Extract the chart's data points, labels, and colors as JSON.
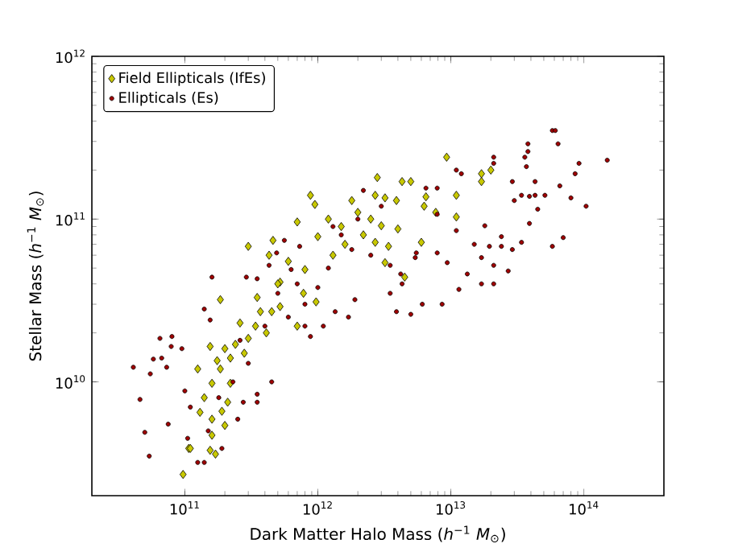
{
  "chart_data": {
    "type": "scatter",
    "xlabel": "Dark Matter Halo Mass (*h*$^{−1}$ *M*$_{⊙}$)",
    "ylabel": "Stellar Mass (*h*$^{−1}$ *M*$_{⊙}$)",
    "log": "xy",
    "xlim": [
      20000000000.0,
      400000000000000.0
    ],
    "ylim": [
      2000000000.0,
      1000000000000.0
    ],
    "xticks": [
      {
        "value": 100000000000.0,
        "label": "10$^{11}$"
      },
      {
        "value": 1000000000000.0,
        "label": "10$^{12}$"
      },
      {
        "value": 10000000000000.0,
        "label": "10$^{13}$"
      },
      {
        "value": 100000000000000.0,
        "label": "10$^{14}$"
      }
    ],
    "yticks": [
      {
        "value": 10000000000.0,
        "label": "10$^{10}$"
      },
      {
        "value": 100000000000.0,
        "label": "10$^{11}$"
      },
      {
        "value": 1000000000000.0,
        "label": "10$^{12}$"
      }
    ],
    "grid": false,
    "legend": "top left",
    "series": [
      {
        "name": "Field Ellipticals (IfEs)",
        "color": "#c8c800",
        "marker": "diamond",
        "x": [
          97000000000.0,
          107000000000.0,
          110000000000.0,
          155000000000.0,
          170000000000.0,
          160000000000.0,
          160000000000.0,
          200000000000.0,
          190000000000.0,
          210000000000.0,
          160000000000.0,
          125000000000.0,
          185000000000.0,
          220000000000.0,
          155000000000.0,
          220000000000.0,
          240000000000.0,
          300000000000.0,
          340000000000.0,
          410000000000.0,
          280000000000.0,
          370000000000.0,
          450000000000.0,
          520000000000.0,
          185000000000.0,
          700000000000.0,
          970000000000.0,
          780000000000.0,
          300000000000.0,
          430000000000.0,
          460000000000.0,
          700000000000.0,
          880000000000.0,
          950000000000.0,
          520000000000.0,
          800000000000.0,
          1000000000000.0,
          9300000000000.0,
          20000000000000.0,
          17000000000000.0,
          17000000000000.0,
          2800000000000.0,
          4300000000000.0,
          5000000000000.0,
          2700000000000.0,
          3200000000000.0,
          3900000000000.0,
          6500000000000.0,
          11000000000000.0,
          6300000000000.0,
          7700000000000.0,
          11000000000000.0,
          3000000000000.0,
          4000000000000.0,
          2700000000000.0,
          3400000000000.0,
          6000000000000.0,
          4500000000000.0,
          3200000000000.0,
          1500000000000.0,
          2000000000000.0,
          1300000000000.0,
          2200000000000.0,
          1800000000000.0,
          1200000000000.0,
          2500000000000.0,
          1600000000000.0,
          600000000000.0,
          500000000000.0,
          350000000000.0,
          260000000000.0,
          200000000000.0,
          140000000000.0,
          130000000000.0,
          175000000000.0
        ],
        "values": [
          2700000000.0,
          3900000000.0,
          3900000000.0,
          3800000000.0,
          3600000000.0,
          4700000000.0,
          5900000000.0,
          5400000000.0,
          6600000000.0,
          7500000000.0,
          9800000000.0,
          12000000000.0,
          12000000000.0,
          9800000000.0,
          16500000000.0,
          14000000000.0,
          17000000000.0,
          18500000000.0,
          22000000000.0,
          20000000000.0,
          15000000000.0,
          27000000000.0,
          27000000000.0,
          29000000000.0,
          32000000000.0,
          22000000000.0,
          31000000000.0,
          35000000000.0,
          68000000000.0,
          60000000000.0,
          74000000000.0,
          96000000000.0,
          140000000000.0,
          123000000000.0,
          41000000000.0,
          49000000000.0,
          78000000000.0,
          240000000000.0,
          200000000000.0,
          190000000000.0,
          170000000000.0,
          180000000000.0,
          170000000000.0,
          170000000000.0,
          140000000000.0,
          135000000000.0,
          130000000000.0,
          137000000000.0,
          140000000000.0,
          120000000000.0,
          110000000000.0,
          103000000000.0,
          91000000000.0,
          87000000000.0,
          72000000000.0,
          68000000000.0,
          72000000000.0,
          44000000000.0,
          54000000000.0,
          90000000000.0,
          110000000000.0,
          60000000000.0,
          80000000000.0,
          130000000000.0,
          100000000000.0,
          100000000000.0,
          70000000000.0,
          55000000000.0,
          40000000000.0,
          33000000000.0,
          23000000000.0,
          16000000000.0,
          8000000000.0,
          6500000000.0,
          13500000000.0
        ]
      },
      {
        "name": "Ellipticals (Es)",
        "color": "#a00000",
        "marker": "circle",
        "x": [
          41000000000.0,
          46000000000.0,
          50000000000.0,
          54000000000.0,
          55000000000.0,
          58000000000.0,
          65000000000.0,
          67000000000.0,
          73000000000.0,
          80000000000.0,
          75000000000.0,
          100000000000.0,
          110000000000.0,
          105000000000.0,
          125000000000.0,
          140000000000.0,
          190000000000.0,
          79000000000.0,
          95000000000.0,
          140000000000.0,
          155000000000.0,
          350000000000.0,
          350000000000.0,
          275000000000.0,
          250000000000.0,
          450000000000.0,
          800000000000.0,
          880000000000.0,
          1350000000000.0,
          1700000000000.0,
          1100000000000.0,
          1900000000000.0,
          160000000000.0,
          290000000000.0,
          350000000000.0,
          560000000000.0,
          490000000000.0,
          430000000000.0,
          630000000000.0,
          730000000000.0,
          58000000000000.0,
          61000000000000.0,
          64000000000000.0,
          38000000000000.0,
          38000000000000.0,
          36000000000000.0,
          37000000000000.0,
          21000000000000.0,
          21000000000000.0,
          92000000000000.0,
          150000000000000.0,
          86000000000000.0,
          66000000000000.0,
          80000000000000.0,
          104000000000000.0,
          70000000000000.0,
          58000000000000.0,
          51000000000000.0,
          43000000000000.0,
          43000000000000.0,
          39000000000000.0,
          45000000000000.0,
          39000000000000.0,
          34000000000000.0,
          29000000000000.0,
          24000000000000.0,
          27000000000000.0,
          21000000000000.0,
          17000000000000.0,
          13300000000000.0,
          11500000000000.0,
          8600000000000.0,
          6100000000000.0,
          5000000000000.0,
          3900000000000.0,
          24000000000000.0,
          19500000000000.0,
          17000000000000.0,
          21000000000000.0,
          12000000000000.0,
          11000000000000.0,
          30000000000000.0,
          34000000000000.0,
          29000000000000.0,
          7900000000000.0,
          6500000000000.0,
          7900000000000.0,
          11000000000000.0,
          18000000000000.0,
          15000000000000.0,
          7900000000000.0,
          5500000000000.0,
          4200000000000.0,
          3500000000000.0,
          3500000000000.0,
          5400000000000.0,
          9400000000000.0,
          4300000000000.0,
          1500000000000.0,
          2000000000000.0,
          2500000000000.0,
          1200000000000.0,
          3000000000000.0,
          1000000000000.0,
          2200000000000.0,
          800000000000.0,
          600000000000.0,
          400000000000.0,
          300000000000.0,
          230000000000.0,
          180000000000.0,
          150000000000.0,
          260000000000.0,
          500000000000.0,
          700000000000.0,
          1800000000000.0,
          1300000000000.0
        ],
        "values": [
          12300000000.0,
          7800000000.0,
          4900000000.0,
          3500000000.0,
          11200000000.0,
          13800000000.0,
          18500000000.0,
          14000000000.0,
          12300000000.0,
          19000000000.0,
          5500000000.0,
          8800000000.0,
          7000000000.0,
          4500000000.0,
          3200000000.0,
          3200000000.0,
          3900000000.0,
          16500000000.0,
          16000000000.0,
          28000000000.0,
          24000000000.0,
          7500000000.0,
          8400000000.0,
          7500000000.0,
          5900000000.0,
          10000000000.0,
          22000000000.0,
          19000000000.0,
          27000000000.0,
          25000000000.0,
          22000000000.0,
          32000000000.0,
          44000000000.0,
          44000000000.0,
          43000000000.0,
          74000000000.0,
          62000000000.0,
          52000000000.0,
          49000000000.0,
          68000000000.0,
          350000000000.0,
          350000000000.0,
          290000000000.0,
          290000000000.0,
          260000000000.0,
          240000000000.0,
          210000000000.0,
          240000000000.0,
          220000000000.0,
          220000000000.0,
          230000000000.0,
          190000000000.0,
          160000000000.0,
          135000000000.0,
          120000000000.0,
          77000000000.0,
          68000000000.0,
          140000000000.0,
          170000000000.0,
          140000000000.0,
          138000000000.0,
          115000000000.0,
          94000000000.0,
          72000000000.0,
          65000000000.0,
          68000000000.0,
          48000000000.0,
          40000000000.0,
          40000000000.0,
          46000000000.0,
          37000000000.0,
          30000000000.0,
          30000000000.0,
          26000000000.0,
          27000000000.0,
          78000000000.0,
          68000000000.0,
          58000000000.0,
          52000000000.0,
          190000000000.0,
          200000000000.0,
          130000000000.0,
          140000000000.0,
          170000000000.0,
          155000000000.0,
          155000000000.0,
          107000000000.0,
          85000000000.0,
          91000000000.0,
          70000000000.0,
          62000000000.0,
          62000000000.0,
          46000000000.0,
          52000000000.0,
          35000000000.0,
          58000000000.0,
          54000000000.0,
          40000000000.0,
          80000000000.0,
          100000000000.0,
          60000000000.0,
          50000000000.0,
          120000000000.0,
          38000000000.0,
          150000000000.0,
          30000000000.0,
          25000000000.0,
          22000000000.0,
          13000000000.0,
          10000000000.0,
          8000000000.0,
          5000000000.0,
          18000000000.0,
          35000000000.0,
          40000000000.0,
          65000000000.0,
          90000000000.0
        ]
      }
    ]
  }
}
